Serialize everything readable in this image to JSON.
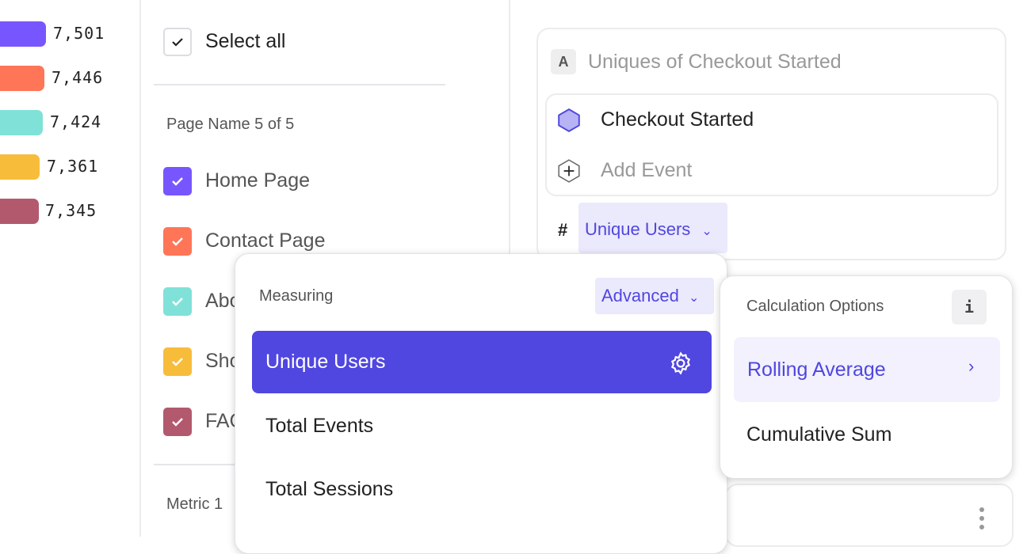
{
  "legend": [
    {
      "value": "7,501",
      "color": "#7856ff"
    },
    {
      "value": "7,446",
      "color": "#ff7557"
    },
    {
      "value": "7,424",
      "color": "#80e1d9"
    },
    {
      "value": "7,361",
      "color": "#f8bc3b"
    },
    {
      "value": "7,345",
      "color": "#b2596e"
    }
  ],
  "filter": {
    "select_all": "Select all",
    "group_label": "Page Name 5 of 5",
    "items": [
      {
        "label": "Home Page",
        "color": "#7856ff"
      },
      {
        "label": "Contact Page",
        "color": "#ff7557"
      },
      {
        "label": "Abo",
        "color": "#80e1d9"
      },
      {
        "label": "Sho",
        "color": "#f8bc3b"
      },
      {
        "label": "FAQ",
        "color": "#b2596e"
      }
    ],
    "metric_label": "Metric 1"
  },
  "metric_card": {
    "badge": "A",
    "title": "Uniques of Checkout Started",
    "event": "Checkout Started",
    "add_event": "Add Event",
    "hash": "#",
    "measure": "Unique Users"
  },
  "measure_menu": {
    "heading": "Measuring",
    "mode": "Advanced",
    "options": [
      "Unique Users",
      "Total Events",
      "Total Sessions"
    ],
    "selected": "Unique Users"
  },
  "calc_menu": {
    "heading": "Calculation Options",
    "info": "i",
    "options": [
      "Rolling Average",
      "Cumulative Sum"
    ]
  },
  "colors": {
    "accent": "#5046e0",
    "accent_light": "#ebe9fc"
  }
}
